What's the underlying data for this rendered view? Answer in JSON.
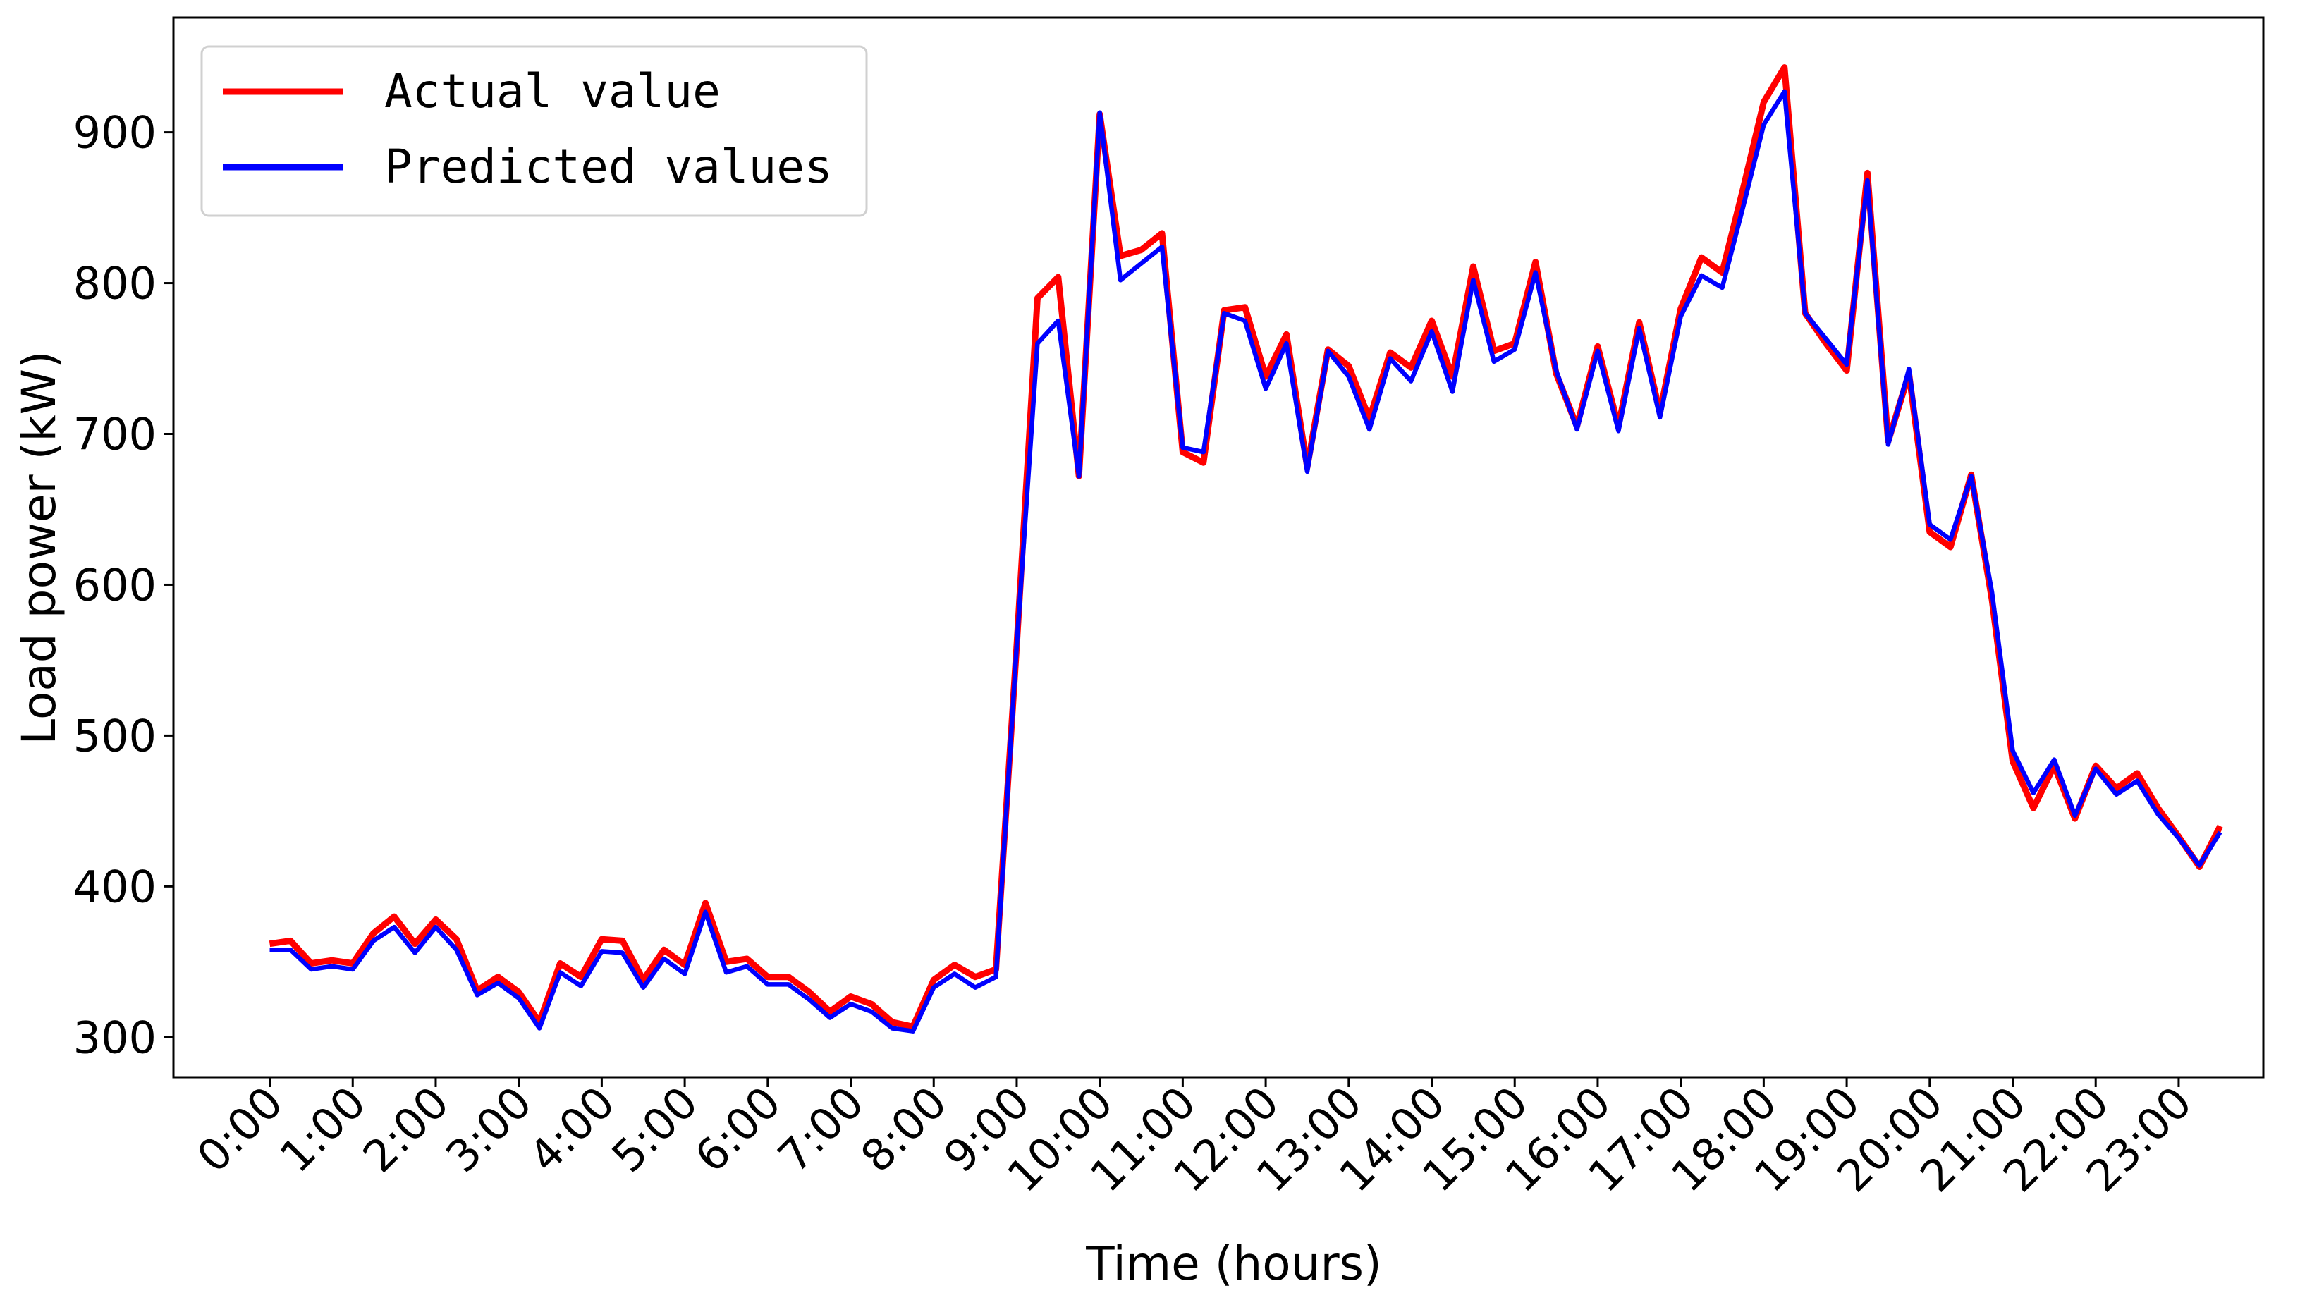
{
  "chart_data": {
    "type": "line",
    "xlabel": "Time (hours)",
    "ylabel": "Load power (kW)",
    "x": [
      0,
      0.25,
      0.5,
      0.75,
      1,
      1.25,
      1.5,
      1.75,
      2,
      2.25,
      2.5,
      2.75,
      3,
      3.25,
      3.5,
      3.75,
      4,
      4.25,
      4.5,
      4.75,
      5,
      5.25,
      5.5,
      5.75,
      6,
      6.25,
      6.5,
      6.75,
      7,
      7.25,
      7.5,
      7.75,
      8,
      8.25,
      8.5,
      8.75,
      9,
      9.25,
      9.5,
      9.75,
      10,
      10.25,
      10.5,
      10.75,
      11,
      11.25,
      11.5,
      11.75,
      12,
      12.25,
      12.5,
      12.75,
      13,
      13.25,
      13.5,
      13.75,
      14,
      14.25,
      14.5,
      14.75,
      15,
      15.25,
      15.5,
      15.75,
      16,
      16.25,
      16.5,
      16.75,
      17,
      17.25,
      17.5,
      17.75,
      18,
      18.25,
      18.5,
      18.75,
      19,
      19.25,
      19.5,
      19.75,
      20,
      20.25,
      20.5,
      20.75,
      21,
      21.25,
      21.5,
      21.75,
      22,
      22.25,
      22.5,
      22.75,
      23,
      23.25,
      23.5
    ],
    "series": [
      {
        "name": "Actual value",
        "color": "#ff0000",
        "values": [
          362,
          364,
          349,
          351,
          349,
          369,
          380,
          362,
          378,
          365,
          331,
          340,
          330,
          310,
          349,
          340,
          365,
          364,
          338,
          358,
          348,
          389,
          350,
          352,
          340,
          340,
          330,
          317,
          327,
          322,
          310,
          307,
          338,
          348,
          340,
          345,
          560,
          790,
          804,
          672,
          912,
          818,
          822,
          833,
          688,
          681,
          782,
          784,
          738,
          766,
          678,
          756,
          745,
          710,
          754,
          744,
          775,
          738,
          811,
          755,
          760,
          814,
          740,
          705,
          758,
          705,
          774,
          714,
          783,
          817,
          807,
          862,
          920,
          943,
          780,
          760,
          742,
          873,
          695,
          740,
          635,
          625,
          673,
          590,
          483,
          452,
          480,
          445,
          480,
          465,
          475,
          452,
          433,
          413,
          440
        ]
      },
      {
        "name": "Predicted values",
        "color": "#0000ff",
        "values": [
          358,
          358,
          345,
          347,
          345,
          364,
          373,
          356,
          373,
          358,
          328,
          336,
          326,
          306,
          343,
          334,
          357,
          356,
          333,
          352,
          342,
          383,
          343,
          347,
          335,
          335,
          325,
          313,
          322,
          317,
          306,
          304,
          333,
          342,
          333,
          340,
          560,
          760,
          775,
          672,
          913,
          802,
          813,
          824,
          691,
          688,
          780,
          775,
          730,
          760,
          675,
          755,
          738,
          703,
          750,
          735,
          768,
          728,
          802,
          748,
          756,
          807,
          742,
          703,
          755,
          702,
          770,
          711,
          778,
          805,
          797,
          850,
          905,
          927,
          780,
          763,
          746,
          868,
          693,
          743,
          640,
          630,
          672,
          595,
          490,
          462,
          484,
          447,
          478,
          461,
          470,
          448,
          432,
          414,
          436
        ]
      }
    ],
    "xlim": [
      -1.16,
      24.02
    ],
    "xticks": [
      {
        "value": 0,
        "label": "0:00"
      },
      {
        "value": 1,
        "label": "1:00"
      },
      {
        "value": 2,
        "label": "2:00"
      },
      {
        "value": 3,
        "label": "3:00"
      },
      {
        "value": 4,
        "label": "4:00"
      },
      {
        "value": 5,
        "label": "5:00"
      },
      {
        "value": 6,
        "label": "6:00"
      },
      {
        "value": 7,
        "label": "7:00"
      },
      {
        "value": 8,
        "label": "8:00"
      },
      {
        "value": 9,
        "label": "9:00"
      },
      {
        "value": 10,
        "label": "10:00"
      },
      {
        "value": 11,
        "label": "11:00"
      },
      {
        "value": 12,
        "label": "12:00"
      },
      {
        "value": 13,
        "label": "13:00"
      },
      {
        "value": 14,
        "label": "14:00"
      },
      {
        "value": 15,
        "label": "15:00"
      },
      {
        "value": 16,
        "label": "16:00"
      },
      {
        "value": 17,
        "label": "17:00"
      },
      {
        "value": 18,
        "label": "18:00"
      },
      {
        "value": 19,
        "label": "19:00"
      },
      {
        "value": 20,
        "label": "20:00"
      },
      {
        "value": 21,
        "label": "21:00"
      },
      {
        "value": 22,
        "label": "22:00"
      },
      {
        "value": 23,
        "label": "23:00"
      }
    ],
    "ylim": [
      273.5,
      976
    ],
    "yticks": [
      300,
      400,
      500,
      600,
      700,
      800,
      900
    ],
    "legend": "upper left"
  }
}
